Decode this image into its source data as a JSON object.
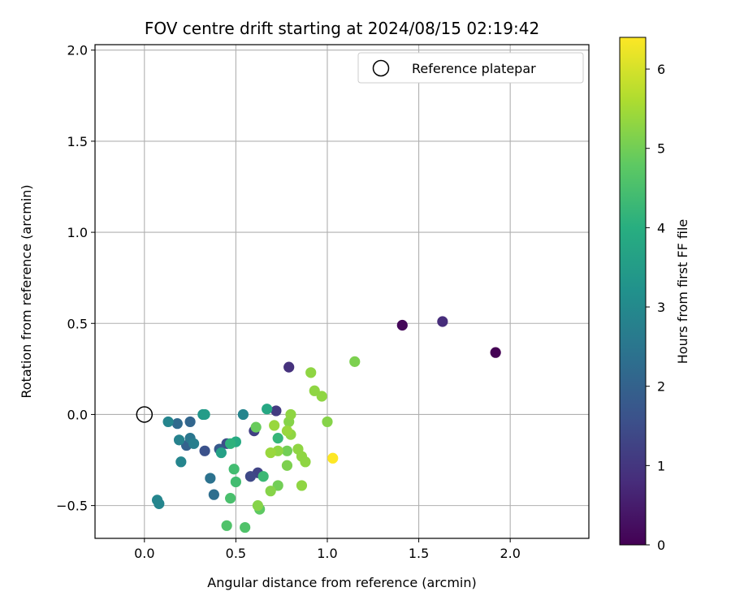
{
  "chart_data": {
    "type": "scatter",
    "title": "FOV centre drift starting at 2024/08/15 02:19:42",
    "xlabel": "Angular distance from reference (arcmin)",
    "ylabel": "Rotation from reference (arcmin)",
    "xlim": [
      -0.27,
      2.43
    ],
    "ylim": [
      -0.68,
      2.03
    ],
    "xticks": [
      0.0,
      0.5,
      1.0,
      1.5,
      2.0
    ],
    "xtick_labels": [
      "0.0",
      "0.5",
      "1.0",
      "1.5",
      "2.0"
    ],
    "yticks": [
      -0.5,
      0.0,
      0.5,
      1.0,
      1.5,
      2.0
    ],
    "ytick_labels": [
      "−0.5",
      "0.0",
      "0.5",
      "1.0",
      "1.5",
      "2.0"
    ],
    "grid": true,
    "legend": {
      "placement": "top-right",
      "entries": [
        "Reference platepar"
      ]
    },
    "reference_point": {
      "x": 0.0,
      "y": 0.0
    },
    "colorbar": {
      "label": "Hours from first FF file",
      "colormap": "viridis",
      "range": [
        0,
        6.4
      ],
      "ticks": [
        0,
        1,
        2,
        3,
        4,
        5,
        6
      ],
      "tick_labels": [
        "0",
        "1",
        "2",
        "3",
        "4",
        "5",
        "6"
      ]
    },
    "points": [
      {
        "x": 1.92,
        "y": 0.34,
        "c": 0.0
      },
      {
        "x": 1.41,
        "y": 0.49,
        "c": 0.1
      },
      {
        "x": 1.63,
        "y": 0.51,
        "c": 0.8
      },
      {
        "x": 0.79,
        "y": 0.26,
        "c": 0.9
      },
      {
        "x": 0.72,
        "y": 0.02,
        "c": 1.1
      },
      {
        "x": 0.6,
        "y": -0.09,
        "c": 1.2
      },
      {
        "x": 0.62,
        "y": -0.32,
        "c": 1.3
      },
      {
        "x": 0.58,
        "y": -0.34,
        "c": 1.4
      },
      {
        "x": 0.45,
        "y": -0.16,
        "c": 1.5
      },
      {
        "x": 0.33,
        "y": -0.2,
        "c": 1.6
      },
      {
        "x": 0.41,
        "y": -0.19,
        "c": 1.8
      },
      {
        "x": 0.23,
        "y": -0.17,
        "c": 2.0
      },
      {
        "x": 0.25,
        "y": -0.04,
        "c": 2.1
      },
      {
        "x": 0.18,
        "y": -0.05,
        "c": 2.2
      },
      {
        "x": 0.38,
        "y": -0.44,
        "c": 2.3
      },
      {
        "x": 0.36,
        "y": -0.35,
        "c": 2.4
      },
      {
        "x": 0.25,
        "y": -0.13,
        "c": 2.5
      },
      {
        "x": 0.27,
        "y": -0.16,
        "c": 2.7
      },
      {
        "x": 0.19,
        "y": -0.14,
        "c": 2.8
      },
      {
        "x": 0.13,
        "y": -0.04,
        "c": 2.9
      },
      {
        "x": 0.2,
        "y": -0.26,
        "c": 2.9
      },
      {
        "x": 0.07,
        "y": -0.47,
        "c": 2.9
      },
      {
        "x": 0.08,
        "y": -0.49,
        "c": 2.9
      },
      {
        "x": 0.54,
        "y": 0.0,
        "c": 2.9
      },
      {
        "x": 0.32,
        "y": 0.0,
        "c": 3.3
      },
      {
        "x": 0.33,
        "y": 0.0,
        "c": 3.5
      },
      {
        "x": 0.42,
        "y": -0.21,
        "c": 3.6
      },
      {
        "x": 0.67,
        "y": 0.03,
        "c": 3.8
      },
      {
        "x": 0.5,
        "y": -0.15,
        "c": 3.9
      },
      {
        "x": 0.47,
        "y": -0.16,
        "c": 4.1
      },
      {
        "x": 0.73,
        "y": -0.13,
        "c": 4.2
      },
      {
        "x": 0.65,
        "y": -0.34,
        "c": 4.3
      },
      {
        "x": 0.49,
        "y": -0.3,
        "c": 4.4
      },
      {
        "x": 0.5,
        "y": -0.37,
        "c": 4.4
      },
      {
        "x": 0.47,
        "y": -0.46,
        "c": 4.5
      },
      {
        "x": 0.45,
        "y": -0.61,
        "c": 4.6
      },
      {
        "x": 0.55,
        "y": -0.62,
        "c": 4.6
      },
      {
        "x": 0.63,
        "y": -0.52,
        "c": 4.8
      },
      {
        "x": 0.61,
        "y": -0.07,
        "c": 4.9
      },
      {
        "x": 0.78,
        "y": -0.2,
        "c": 5.0
      },
      {
        "x": 0.73,
        "y": -0.39,
        "c": 5.0
      },
      {
        "x": 0.78,
        "y": -0.28,
        "c": 5.1
      },
      {
        "x": 0.69,
        "y": -0.42,
        "c": 5.2
      },
      {
        "x": 0.62,
        "y": -0.5,
        "c": 5.2
      },
      {
        "x": 0.79,
        "y": -0.04,
        "c": 5.2
      },
      {
        "x": 0.8,
        "y": 0.0,
        "c": 5.3
      },
      {
        "x": 0.8,
        "y": -0.11,
        "c": 5.3
      },
      {
        "x": 0.73,
        "y": -0.2,
        "c": 5.3
      },
      {
        "x": 0.69,
        "y": -0.21,
        "c": 5.4
      },
      {
        "x": 0.71,
        "y": -0.06,
        "c": 5.4
      },
      {
        "x": 0.78,
        "y": -0.09,
        "c": 5.4
      },
      {
        "x": 0.84,
        "y": -0.19,
        "c": 5.3
      },
      {
        "x": 0.86,
        "y": -0.23,
        "c": 5.3
      },
      {
        "x": 0.88,
        "y": -0.26,
        "c": 5.3
      },
      {
        "x": 0.86,
        "y": -0.39,
        "c": 5.3
      },
      {
        "x": 0.91,
        "y": 0.23,
        "c": 5.3
      },
      {
        "x": 0.93,
        "y": 0.13,
        "c": 5.3
      },
      {
        "x": 0.97,
        "y": 0.1,
        "c": 5.3
      },
      {
        "x": 1.0,
        "y": -0.04,
        "c": 5.2
      },
      {
        "x": 1.15,
        "y": 0.29,
        "c": 5.1
      },
      {
        "x": 1.03,
        "y": -0.24,
        "c": 6.4
      }
    ]
  }
}
